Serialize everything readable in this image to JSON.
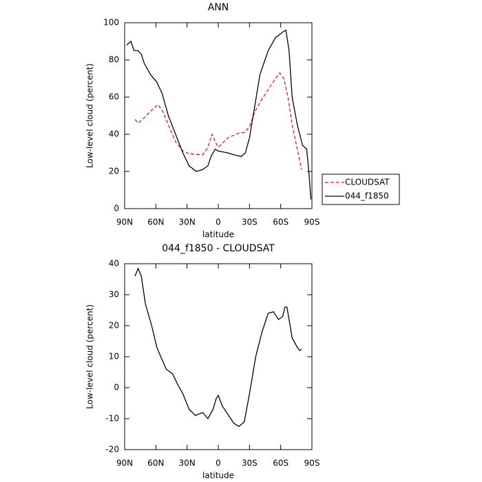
{
  "chart_data": [
    {
      "type": "line",
      "title": "ANN",
      "xlabel": "latitude",
      "ylabel": "Low-level cloud (percent)",
      "xlim": [
        90,
        -90
      ],
      "ylim": [
        0,
        100
      ],
      "xticks": [
        {
          "value": 90,
          "label": "90N"
        },
        {
          "value": 60,
          "label": "60N"
        },
        {
          "value": 30,
          "label": "30N"
        },
        0,
        {
          "value": -30,
          "label": "30S"
        },
        {
          "value": -60,
          "label": "60S"
        },
        {
          "value": -90,
          "label": "90S"
        }
      ],
      "yticks": [
        0,
        20,
        40,
        60,
        80,
        100
      ],
      "legend": "right",
      "series": [
        {
          "name": "CLOUDSAT",
          "color": "#e41a1c",
          "linestyle": "dashed",
          "x": [
            80,
            77,
            71,
            64,
            58,
            53,
            48,
            41,
            34,
            28,
            15,
            10,
            6,
            3,
            0,
            -9,
            -19,
            -25,
            -30,
            -35,
            -41,
            -49,
            -55,
            -59,
            -63,
            -67,
            -71,
            -76,
            -80
          ],
          "values": [
            48,
            46,
            49,
            53,
            56,
            52,
            45,
            36,
            31,
            29.5,
            29,
            33,
            40,
            36,
            33,
            38,
            40.5,
            41,
            44,
            52,
            58,
            65,
            70,
            73,
            70,
            60,
            45,
            32,
            21
          ]
        },
        {
          "name": "044_f1850",
          "color": "#000000",
          "linestyle": "solid",
          "x": [
            88,
            84,
            81,
            77,
            74,
            71,
            65,
            59,
            54,
            48,
            41,
            34,
            28,
            21,
            15,
            10,
            7,
            3,
            0,
            -9,
            -15,
            -22,
            -26,
            -30,
            -35,
            -40,
            -48,
            -55,
            -62,
            -65,
            -68,
            -71,
            -76,
            -81,
            -85,
            -87,
            -89
          ],
          "values": [
            88,
            90,
            85,
            85,
            83,
            78,
            72,
            68,
            62,
            50,
            40,
            30,
            23,
            20,
            21,
            23,
            28,
            32,
            31,
            30,
            29,
            28,
            30,
            38,
            55,
            72,
            85,
            92,
            95,
            96,
            85,
            60,
            45,
            34,
            32,
            20,
            5
          ]
        }
      ]
    },
    {
      "type": "line",
      "title": "044_f1850 - CLOUDSAT",
      "xlabel": "latitude",
      "ylabel": "Low-level cloud (percent)",
      "xlim": [
        90,
        -90
      ],
      "ylim": [
        -20,
        40
      ],
      "xticks": [
        {
          "value": 90,
          "label": "90N"
        },
        {
          "value": 60,
          "label": "60N"
        },
        {
          "value": 30,
          "label": "30N"
        },
        0,
        {
          "value": -30,
          "label": "30S"
        },
        {
          "value": -60,
          "label": "60S"
        },
        {
          "value": -90,
          "label": "90S"
        }
      ],
      "yticks": [
        -20,
        -10,
        0,
        10,
        20,
        30,
        40
      ],
      "series": [
        {
          "color": "#000000",
          "linestyle": "solid",
          "x": [
            80,
            77,
            74,
            70,
            64,
            59,
            54,
            50,
            44,
            39,
            34,
            28,
            22,
            15,
            10,
            5,
            2,
            0,
            -4,
            -10,
            -15,
            -20,
            -25,
            -30,
            -36,
            -42,
            -48,
            -53,
            -58,
            -62,
            -64,
            -66,
            -68,
            -71,
            -76,
            -78,
            -80
          ],
          "values": [
            36,
            38.5,
            36,
            27,
            20,
            13,
            9,
            6,
            4.5,
            1,
            -2,
            -7,
            -9,
            -8,
            -10,
            -7,
            -3.5,
            -2.5,
            -6,
            -9,
            -11.5,
            -12.5,
            -11,
            -2,
            10,
            18,
            24,
            24.5,
            22,
            23,
            26,
            26,
            22,
            16,
            13,
            12,
            12.5
          ]
        }
      ]
    }
  ]
}
